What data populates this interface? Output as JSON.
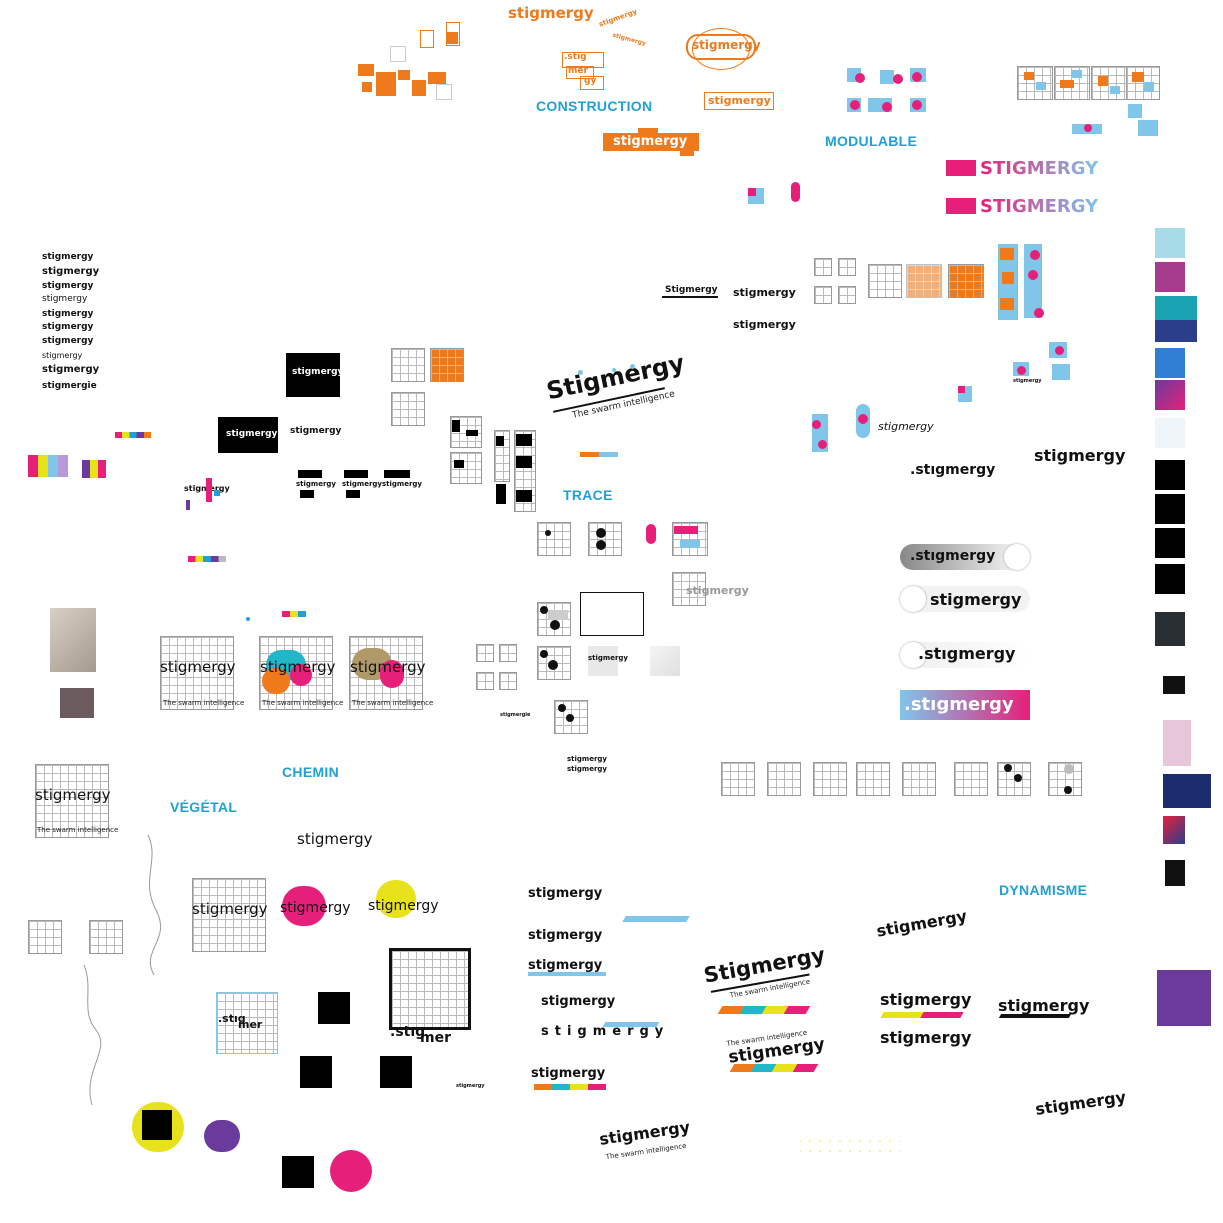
{
  "sections": {
    "construction": "CONSTRUCTION",
    "modulable": "MODULABLE",
    "trace": "TRACE",
    "chemin": "CHEMIN",
    "vegetal": "VÉGÉTAL",
    "dynamisme": "DYNAMISME"
  },
  "brand": {
    "word": "stigmergy",
    "word_caps": "STIGMERGY",
    "word_title": "Stigmergy",
    "tagline": "The swarm intelligence",
    "variant_dot": ".stıgmergy",
    "variant_dot_short": ".stıg",
    "variant_mer": "mer",
    "variant_gy": "gy",
    "variant_fr": "stigmergie"
  },
  "wordlist": [
    "stigmergy",
    "stigmergy",
    "stigmergy",
    "stigmergy",
    "stigmergy",
    "stigmergy",
    "stigmergy",
    "stigmergy",
    "stigmergy",
    "stigmergie"
  ],
  "colors": {
    "accent": "#21a0d6",
    "orange": "#ee7a1c",
    "magenta": "#e6207a",
    "light_blue": "#7fc6ea",
    "yellow": "#e8e21c",
    "purple": "#6a3b9c",
    "lavender": "#b99ad8"
  }
}
